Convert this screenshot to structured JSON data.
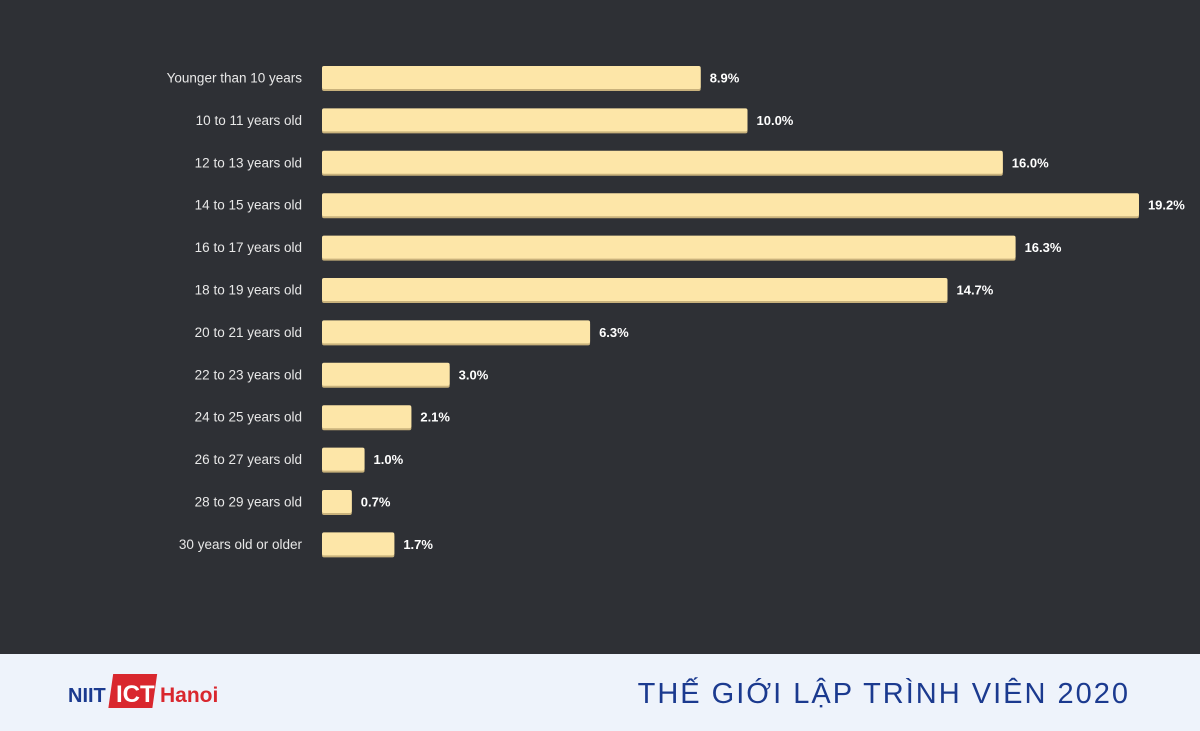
{
  "chart_data": {
    "type": "bar",
    "orientation": "horizontal",
    "categories": [
      "Younger than 10 years",
      "10 to 11 years old",
      "12 to 13 years old",
      "14 to 15 years old",
      "16 to 17 years old",
      "18 to 19 years old",
      "20 to 21 years old",
      "22 to 23 years old",
      "24 to 25 years old",
      "26 to 27 years old",
      "28 to 29 years old",
      "30 years old or older"
    ],
    "values": [
      8.9,
      10.0,
      16.0,
      19.2,
      16.3,
      14.7,
      6.3,
      3.0,
      2.1,
      1.0,
      0.7,
      1.7
    ],
    "value_labels": [
      "8.9%",
      "10.0%",
      "16.0%",
      "19.2%",
      "16.3%",
      "14.7%",
      "6.3%",
      "3.0%",
      "2.1%",
      "1.0%",
      "0.7%",
      "1.7%"
    ],
    "unit": "%",
    "bar_color": "#fde6a8",
    "background_color": "#2e3035",
    "grid": false,
    "legend": "none"
  },
  "footer": {
    "logo": {
      "part1": "NIIT",
      "part2": "ICT",
      "part3": "Hanoi",
      "colors": {
        "navy": "#1b3a8f",
        "red": "#d9272e"
      }
    },
    "title": "THẾ GIỚI LẬP TRÌNH VIÊN 2020"
  }
}
